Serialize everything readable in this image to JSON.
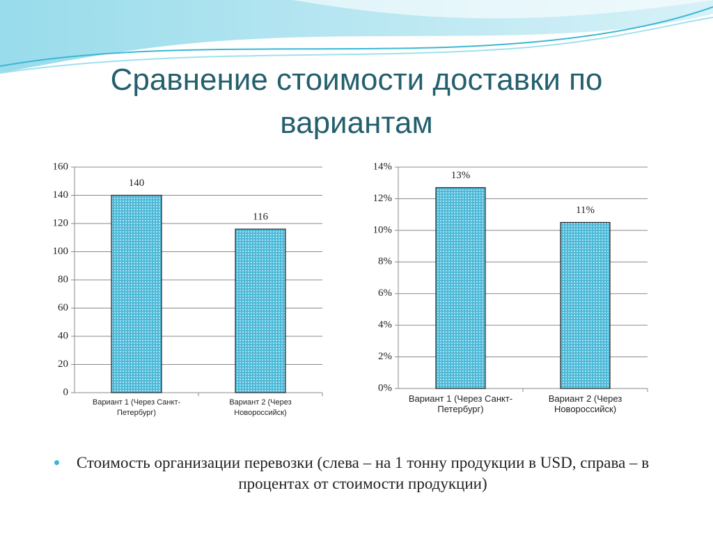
{
  "slide": {
    "title": "Сравнение стоимости доставки по вариантам",
    "bullet": "Стоимость организации перевозки (слева – на 1 тонну продукции в USD, справа – в процентах от стоимости продукции)"
  },
  "chart_data": [
    {
      "type": "bar",
      "categories": [
        "Вариант 1 (Через Санкт-Петербург)",
        "Вариант 2 (Через Новороссийск)"
      ],
      "values": [
        140,
        116
      ],
      "color": "#5ec3df",
      "ylim": [
        0,
        160
      ],
      "yticks": [
        0,
        20,
        40,
        60,
        80,
        100,
        120,
        140,
        160
      ],
      "grid": true
    },
    {
      "type": "bar",
      "categories": [
        "Вариант 1 (Через Санкт-Петербург)",
        "Вариант 2 (Через Новороссийск)"
      ],
      "values": [
        12.7,
        10.5
      ],
      "value_labels": [
        "13%",
        "11%"
      ],
      "color": "#5ec3df",
      "ylim": [
        0,
        14
      ],
      "yticks": [
        {
          "value": 0,
          "label": "0%"
        },
        {
          "value": 2,
          "label": "2%"
        },
        {
          "value": 4,
          "label": "4%"
        },
        {
          "value": 6,
          "label": "6%"
        },
        {
          "value": 8,
          "label": "8%"
        },
        {
          "value": 10,
          "label": "10%"
        },
        {
          "value": 12,
          "label": "12%"
        },
        {
          "value": 14,
          "label": "14%"
        }
      ],
      "grid": true
    }
  ]
}
